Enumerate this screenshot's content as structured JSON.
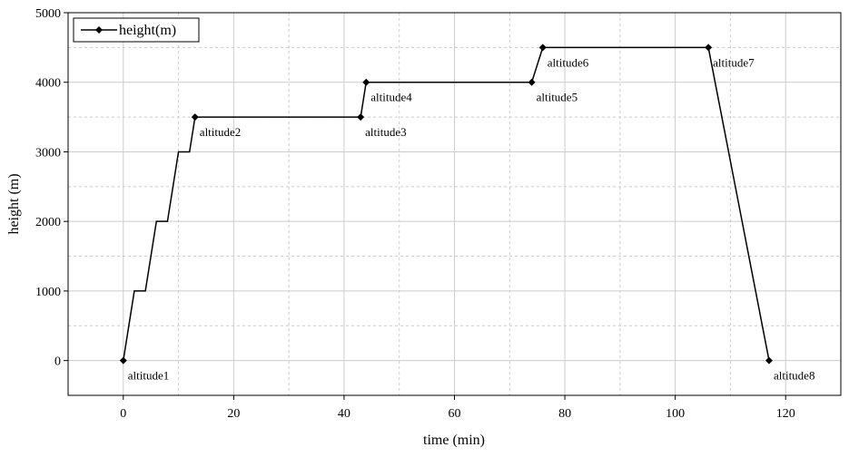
{
  "chart_data": {
    "type": "line",
    "xlabel": "time (min)",
    "ylabel": "height (m)",
    "series": [
      {
        "name": "height(m)",
        "color": "#000000",
        "x": [
          0,
          2,
          4,
          6,
          8,
          10,
          12,
          13,
          43,
          44,
          74,
          76,
          106,
          117
        ],
        "values": [
          0,
          1000,
          1000,
          2000,
          2000,
          3000,
          3000,
          3500,
          3500,
          4000,
          4000,
          4500,
          4500,
          0
        ],
        "point_labels": [
          "altitude1",
          null,
          null,
          null,
          null,
          null,
          null,
          "altitude2",
          "altitude3",
          "altitude4",
          "altitude5",
          "altitude6",
          "altitude7",
          "altitude8"
        ]
      }
    ],
    "xlim": [
      -10,
      130
    ],
    "ylim": [
      -500,
      5000
    ],
    "xticks": [
      0,
      20,
      40,
      60,
      80,
      100,
      120
    ],
    "yticks": [
      0,
      1000,
      2000,
      3000,
      4000,
      5000
    ],
    "minor_xticks": [
      10,
      30,
      50,
      70,
      90,
      110
    ],
    "minor_yticks": [
      500,
      1500,
      2500,
      3500,
      4500
    ],
    "grid": true,
    "legend": "upper-left"
  }
}
